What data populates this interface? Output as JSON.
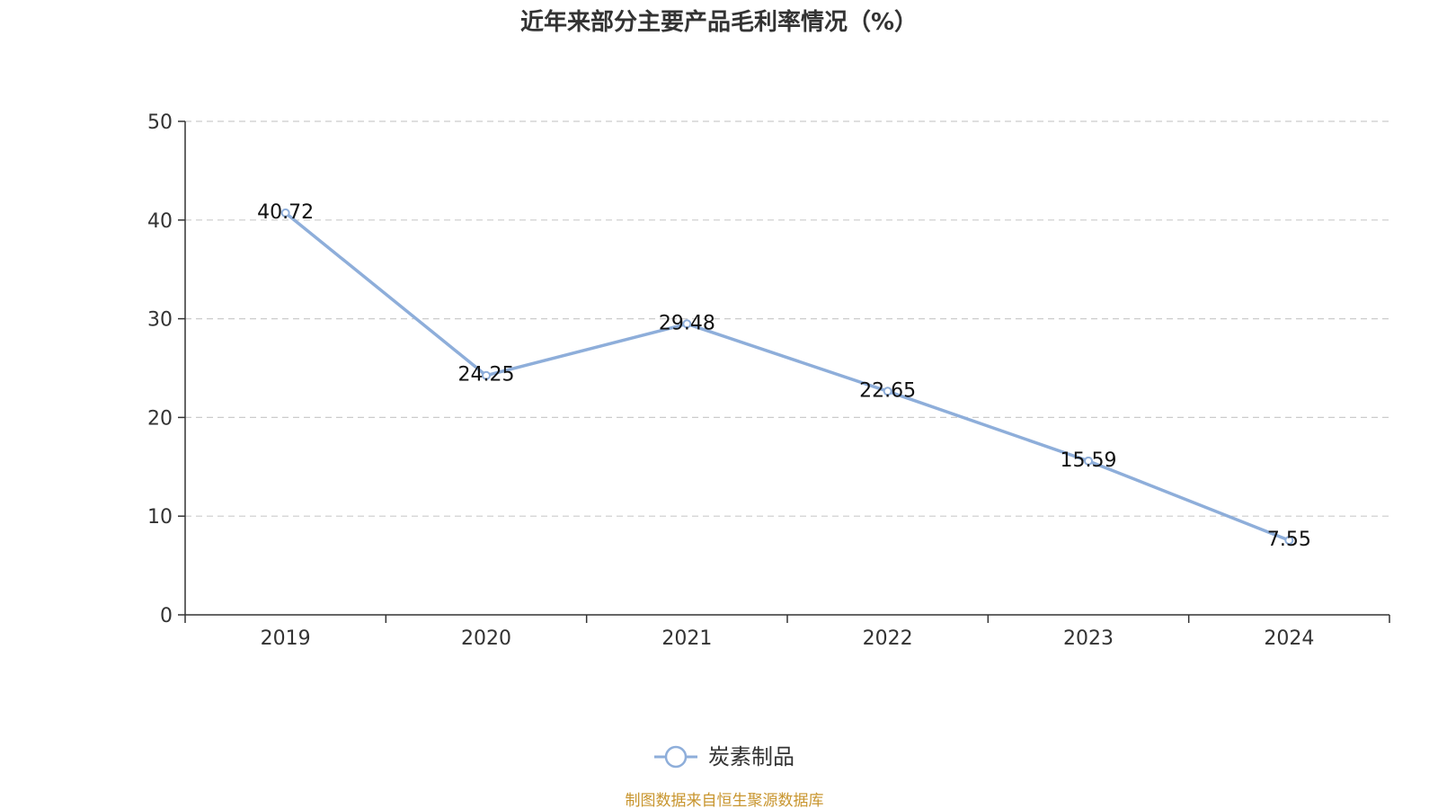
{
  "chart_data": {
    "type": "line",
    "title": "近年来部分主要产品毛利率情况（%）",
    "categories": [
      "2019",
      "2020",
      "2021",
      "2022",
      "2023",
      "2024"
    ],
    "series": [
      {
        "name": "炭素制品",
        "values": [
          40.72,
          24.25,
          29.48,
          22.65,
          15.59,
          7.55
        ]
      }
    ],
    "ylim": [
      0,
      50
    ],
    "yticks": [
      0,
      10,
      20,
      30,
      40,
      50
    ],
    "xlabel": "",
    "ylabel": "",
    "grid": true,
    "legend_position": "bottom-center"
  },
  "source_note": "制图数据来自恒生聚源数据库",
  "colors": {
    "series_line": "#8EAEDA",
    "axis": "#333333",
    "grid": "#CCCCCC",
    "source_note": "#C8952E"
  }
}
